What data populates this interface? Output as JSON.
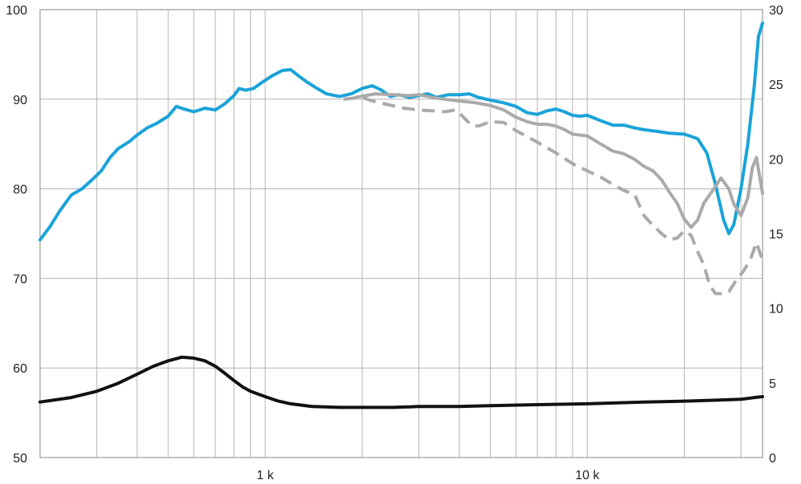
{
  "chart_data": {
    "type": "line",
    "title": "",
    "xlabel": "",
    "ylabel": "",
    "y2label": "",
    "x_scale": "log",
    "xlim": [
      200,
      35000
    ],
    "ylim": [
      50,
      100
    ],
    "y2lim": [
      0,
      30
    ],
    "grid": true,
    "legend": "none",
    "x_ticks": [
      {
        "value": 1000,
        "label": "1 k"
      },
      {
        "value": 10000,
        "label": "10 k"
      }
    ],
    "y_ticks": [
      {
        "value": 50,
        "label": "50"
      },
      {
        "value": 60,
        "label": "60"
      },
      {
        "value": 70,
        "label": "70"
      },
      {
        "value": 80,
        "label": "80"
      },
      {
        "value": 90,
        "label": "90"
      },
      {
        "value": 100,
        "label": "100"
      }
    ],
    "y2_ticks": [
      {
        "value": 0,
        "label": "0"
      },
      {
        "value": 5,
        "label": "5"
      },
      {
        "value": 10,
        "label": "10"
      },
      {
        "value": 15,
        "label": "15"
      },
      {
        "value": 20,
        "label": "20"
      },
      {
        "value": 25,
        "label": "25"
      },
      {
        "value": 30,
        "label": "30"
      }
    ],
    "series": [
      {
        "axis": "left",
        "color": "#1aa3d9",
        "style": "solid",
        "width": 4,
        "points": [
          [
            200,
            74.3
          ],
          [
            215,
            75.8
          ],
          [
            230,
            77.5
          ],
          [
            250,
            79.3
          ],
          [
            270,
            80.0
          ],
          [
            290,
            81.0
          ],
          [
            310,
            82.0
          ],
          [
            330,
            83.5
          ],
          [
            350,
            84.5
          ],
          [
            380,
            85.3
          ],
          [
            400,
            86.0
          ],
          [
            430,
            86.8
          ],
          [
            460,
            87.3
          ],
          [
            500,
            88.1
          ],
          [
            530,
            89.2
          ],
          [
            560,
            88.9
          ],
          [
            600,
            88.6
          ],
          [
            650,
            89.0
          ],
          [
            700,
            88.8
          ],
          [
            750,
            89.5
          ],
          [
            800,
            90.4
          ],
          [
            830,
            91.2
          ],
          [
            870,
            91.0
          ],
          [
            920,
            91.2
          ],
          [
            970,
            91.8
          ],
          [
            1050,
            92.6
          ],
          [
            1130,
            93.2
          ],
          [
            1200,
            93.3
          ],
          [
            1270,
            92.6
          ],
          [
            1350,
            91.9
          ],
          [
            1450,
            91.2
          ],
          [
            1550,
            90.6
          ],
          [
            1700,
            90.3
          ],
          [
            1850,
            90.6
          ],
          [
            2000,
            91.2
          ],
          [
            2150,
            91.5
          ],
          [
            2300,
            91.0
          ],
          [
            2450,
            90.3
          ],
          [
            2600,
            90.5
          ],
          [
            2800,
            90.2
          ],
          [
            3000,
            90.4
          ],
          [
            3200,
            90.6
          ],
          [
            3400,
            90.2
          ],
          [
            3700,
            90.5
          ],
          [
            4000,
            90.5
          ],
          [
            4300,
            90.6
          ],
          [
            4600,
            90.2
          ],
          [
            5000,
            89.9
          ],
          [
            5500,
            89.6
          ],
          [
            6000,
            89.2
          ],
          [
            6500,
            88.5
          ],
          [
            7000,
            88.3
          ],
          [
            7500,
            88.7
          ],
          [
            8000,
            88.9
          ],
          [
            8500,
            88.6
          ],
          [
            9000,
            88.2
          ],
          [
            9500,
            88.1
          ],
          [
            10000,
            88.2
          ],
          [
            11000,
            87.6
          ],
          [
            12000,
            87.1
          ],
          [
            13000,
            87.1
          ],
          [
            14000,
            86.8
          ],
          [
            15000,
            86.6
          ],
          [
            16500,
            86.4
          ],
          [
            18000,
            86.2
          ],
          [
            20000,
            86.1
          ],
          [
            22000,
            85.6
          ],
          [
            23500,
            84.0
          ],
          [
            25000,
            80.5
          ],
          [
            26500,
            76.5
          ],
          [
            27500,
            75.0
          ],
          [
            28500,
            76.0
          ],
          [
            30000,
            80.0
          ],
          [
            31500,
            85.0
          ],
          [
            33000,
            91.5
          ],
          [
            34000,
            97.0
          ],
          [
            35000,
            98.5
          ]
        ]
      },
      {
        "axis": "left",
        "color": "#aaaaaa",
        "style": "solid",
        "width": 4,
        "points": [
          [
            1900,
            90.2
          ],
          [
            2200,
            90.6
          ],
          [
            2500,
            90.5
          ],
          [
            2800,
            90.4
          ],
          [
            3000,
            90.5
          ],
          [
            3300,
            90.2
          ],
          [
            3600,
            90.0
          ],
          [
            4000,
            89.8
          ],
          [
            4500,
            89.6
          ],
          [
            5000,
            89.3
          ],
          [
            5500,
            88.8
          ],
          [
            6000,
            88.0
          ],
          [
            6500,
            87.5
          ],
          [
            7000,
            87.2
          ],
          [
            7500,
            87.2
          ],
          [
            8000,
            87.0
          ],
          [
            8500,
            86.6
          ],
          [
            9000,
            86.1
          ],
          [
            10000,
            85.9
          ],
          [
            11000,
            85.0
          ],
          [
            12000,
            84.2
          ],
          [
            13000,
            83.9
          ],
          [
            14000,
            83.3
          ],
          [
            15000,
            82.5
          ],
          [
            16000,
            82.0
          ],
          [
            17000,
            81.0
          ],
          [
            18000,
            79.6
          ],
          [
            19000,
            78.4
          ],
          [
            20000,
            76.6
          ],
          [
            21000,
            75.7
          ],
          [
            22000,
            76.5
          ],
          [
            23000,
            78.4
          ],
          [
            24500,
            79.8
          ],
          [
            26000,
            81.2
          ],
          [
            27500,
            80.0
          ],
          [
            28500,
            78.3
          ],
          [
            30000,
            77.0
          ],
          [
            31500,
            79.0
          ],
          [
            32500,
            82.3
          ],
          [
            33500,
            83.5
          ],
          [
            35000,
            79.5
          ]
        ]
      },
      {
        "axis": "left",
        "color": "#aaaaaa",
        "style": "dashed",
        "width": 4,
        "points": [
          [
            1750,
            90.0
          ],
          [
            2000,
            90.2
          ],
          [
            2150,
            89.8
          ],
          [
            2400,
            89.4
          ],
          [
            2700,
            89.0
          ],
          [
            3000,
            88.8
          ],
          [
            3300,
            88.7
          ],
          [
            3600,
            88.6
          ],
          [
            3900,
            88.8
          ],
          [
            4000,
            88.5
          ],
          [
            4200,
            87.7
          ],
          [
            4400,
            87.0
          ],
          [
            4600,
            87.0
          ],
          [
            5000,
            87.5
          ],
          [
            5500,
            87.4
          ],
          [
            6000,
            86.5
          ],
          [
            7000,
            85.2
          ],
          [
            8000,
            84.0
          ],
          [
            9000,
            82.8
          ],
          [
            10000,
            82.0
          ],
          [
            11000,
            81.3
          ],
          [
            12000,
            80.5
          ],
          [
            13000,
            79.8
          ],
          [
            14000,
            79.4
          ],
          [
            15000,
            77.0
          ],
          [
            16000,
            75.9
          ],
          [
            17000,
            75.0
          ],
          [
            18000,
            74.3
          ],
          [
            19000,
            74.5
          ],
          [
            20000,
            75.3
          ],
          [
            21000,
            74.8
          ],
          [
            22000,
            73.0
          ],
          [
            23000,
            71.5
          ],
          [
            24000,
            69.2
          ],
          [
            25000,
            68.3
          ],
          [
            26000,
            68.3
          ],
          [
            27500,
            68.5
          ],
          [
            29000,
            69.8
          ],
          [
            30500,
            70.8
          ],
          [
            32000,
            72.0
          ],
          [
            33500,
            74.0
          ],
          [
            35000,
            72.0
          ]
        ]
      },
      {
        "axis": "left",
        "color": "#111111",
        "style": "solid",
        "width": 4,
        "points": [
          [
            200,
            56.2
          ],
          [
            250,
            56.7
          ],
          [
            300,
            57.4
          ],
          [
            350,
            58.3
          ],
          [
            400,
            59.3
          ],
          [
            450,
            60.2
          ],
          [
            500,
            60.8
          ],
          [
            550,
            61.2
          ],
          [
            600,
            61.1
          ],
          [
            650,
            60.8
          ],
          [
            700,
            60.2
          ],
          [
            750,
            59.4
          ],
          [
            800,
            58.6
          ],
          [
            850,
            57.9
          ],
          [
            900,
            57.4
          ],
          [
            1000,
            56.8
          ],
          [
            1100,
            56.3
          ],
          [
            1200,
            56.0
          ],
          [
            1400,
            55.7
          ],
          [
            1700,
            55.6
          ],
          [
            2000,
            55.6
          ],
          [
            2500,
            55.6
          ],
          [
            3000,
            55.7
          ],
          [
            4000,
            55.7
          ],
          [
            5000,
            55.8
          ],
          [
            7000,
            55.9
          ],
          [
            10000,
            56.0
          ],
          [
            15000,
            56.2
          ],
          [
            20000,
            56.3
          ],
          [
            25000,
            56.4
          ],
          [
            30000,
            56.5
          ],
          [
            33000,
            56.7
          ],
          [
            35000,
            56.8
          ]
        ]
      }
    ]
  }
}
